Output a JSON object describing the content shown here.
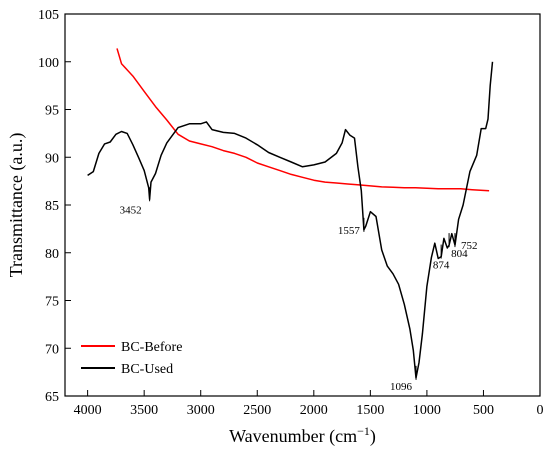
{
  "chart_data": {
    "type": "line",
    "xlabel": "Wavenumber (cm",
    "xlabel_sup": "−1",
    "xlabel_close": ")",
    "ylabel": "Transmittance (a.u.)",
    "xlim": [
      4200,
      0
    ],
    "ylim": [
      65,
      105
    ],
    "x_ticks": [
      4000,
      3500,
      3000,
      2500,
      2000,
      1500,
      1000,
      500,
      0
    ],
    "y_ticks": [
      65,
      70,
      75,
      80,
      85,
      90,
      95,
      100,
      105
    ],
    "legend_position": "bottom-left",
    "series": [
      {
        "name": "BC-Before",
        "color": "#ff0000",
        "points": [
          [
            3740,
            101.4
          ],
          [
            3700,
            99.8
          ],
          [
            3600,
            98.5
          ],
          [
            3500,
            96.9
          ],
          [
            3400,
            95.3
          ],
          [
            3300,
            93.9
          ],
          [
            3200,
            92.4
          ],
          [
            3100,
            91.7
          ],
          [
            3000,
            91.4
          ],
          [
            2900,
            91.1
          ],
          [
            2800,
            90.7
          ],
          [
            2700,
            90.4
          ],
          [
            2600,
            90.0
          ],
          [
            2500,
            89.4
          ],
          [
            2400,
            89.0
          ],
          [
            2300,
            88.6
          ],
          [
            2200,
            88.2
          ],
          [
            2100,
            87.9
          ],
          [
            2000,
            87.6
          ],
          [
            1900,
            87.4
          ],
          [
            1800,
            87.3
          ],
          [
            1700,
            87.2
          ],
          [
            1600,
            87.1
          ],
          [
            1500,
            87.0
          ],
          [
            1400,
            86.9
          ],
          [
            1300,
            86.85
          ],
          [
            1200,
            86.8
          ],
          [
            1100,
            86.8
          ],
          [
            1000,
            86.75
          ],
          [
            900,
            86.7
          ],
          [
            800,
            86.7
          ],
          [
            700,
            86.7
          ],
          [
            600,
            86.6
          ],
          [
            450,
            86.5
          ]
        ]
      },
      {
        "name": "BC-Used",
        "color": "#000000",
        "points": [
          [
            4000,
            88.1
          ],
          [
            3950,
            88.5
          ],
          [
            3900,
            90.4
          ],
          [
            3850,
            91.4
          ],
          [
            3800,
            91.6
          ],
          [
            3750,
            92.4
          ],
          [
            3700,
            92.7
          ],
          [
            3650,
            92.5
          ],
          [
            3600,
            91.3
          ],
          [
            3550,
            90.0
          ],
          [
            3500,
            88.6
          ],
          [
            3460,
            86.8
          ],
          [
            3452,
            85.6
          ],
          [
            3440,
            87.4
          ],
          [
            3400,
            88.3
          ],
          [
            3350,
            90.2
          ],
          [
            3300,
            91.5
          ],
          [
            3200,
            93.1
          ],
          [
            3100,
            93.5
          ],
          [
            3000,
            93.5
          ],
          [
            2950,
            93.7
          ],
          [
            2900,
            92.9
          ],
          [
            2800,
            92.6
          ],
          [
            2700,
            92.5
          ],
          [
            2600,
            92.0
          ],
          [
            2500,
            91.3
          ],
          [
            2400,
            90.5
          ],
          [
            2300,
            90.0
          ],
          [
            2200,
            89.5
          ],
          [
            2100,
            89.0
          ],
          [
            2000,
            89.2
          ],
          [
            1900,
            89.5
          ],
          [
            1800,
            90.4
          ],
          [
            1750,
            91.5
          ],
          [
            1720,
            92.9
          ],
          [
            1680,
            92.3
          ],
          [
            1640,
            92.0
          ],
          [
            1610,
            89.0
          ],
          [
            1580,
            86.5
          ],
          [
            1557,
            82.4
          ],
          [
            1540,
            82.8
          ],
          [
            1500,
            84.3
          ],
          [
            1450,
            83.8
          ],
          [
            1400,
            80.3
          ],
          [
            1350,
            78.6
          ],
          [
            1300,
            77.8
          ],
          [
            1250,
            76.7
          ],
          [
            1200,
            74.6
          ],
          [
            1150,
            72.0
          ],
          [
            1120,
            69.8
          ],
          [
            1096,
            66.9
          ],
          [
            1070,
            68.5
          ],
          [
            1040,
            71.5
          ],
          [
            1000,
            76.5
          ],
          [
            960,
            79.5
          ],
          [
            930,
            81.0
          ],
          [
            900,
            79.4
          ],
          [
            874,
            79.6
          ],
          [
            850,
            81.5
          ],
          [
            820,
            80.5
          ],
          [
            804,
            80.8
          ],
          [
            780,
            82.0
          ],
          [
            752,
            80.8
          ],
          [
            720,
            83.5
          ],
          [
            680,
            85.0
          ],
          [
            620,
            88.5
          ],
          [
            560,
            90.2
          ],
          [
            520,
            93.0
          ],
          [
            480,
            93.0
          ],
          [
            460,
            94.0
          ],
          [
            440,
            97.5
          ],
          [
            420,
            100.0
          ]
        ]
      }
    ],
    "annotations": [
      {
        "label": "3452",
        "x": 3452
      },
      {
        "label": "1557",
        "x": 1557
      },
      {
        "label": "1096",
        "x": 1096
      },
      {
        "label": "874",
        "x": 874
      },
      {
        "label": "804",
        "x": 804
      },
      {
        "label": "752",
        "x": 752
      }
    ]
  }
}
